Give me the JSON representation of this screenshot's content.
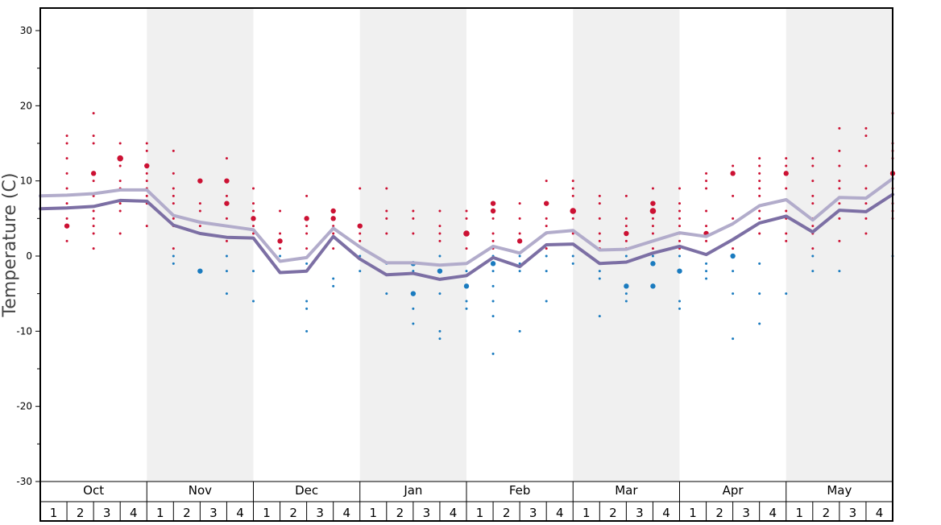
{
  "chart_data": {
    "type": "line",
    "title": "",
    "ylabel": "Temperature (C)",
    "xlabel": "",
    "ylim": [
      -30,
      33
    ],
    "yticks": [
      30,
      20,
      10,
      0,
      -10,
      -20,
      -30
    ],
    "grid": false,
    "months": [
      "Oct",
      "Nov",
      "Dec",
      "Jan",
      "Feb",
      "Mar",
      "Apr",
      "May"
    ],
    "weeks": [
      "1",
      "2",
      "3",
      "4"
    ],
    "colors": {
      "band": "#f0f0f0",
      "warm_dot": "#cc1133",
      "cold_dot": "#1a7bbf",
      "upper_line": "#b2accb",
      "lower_line": "#7c6fa4"
    },
    "series": [
      {
        "role": "upper",
        "values": [
          8.0,
          8.1,
          8.3,
          8.8,
          8.8,
          5.4,
          4.5,
          4.0,
          3.5,
          -0.7,
          -0.2,
          3.7,
          1.2,
          -0.9,
          -0.9,
          -1.2,
          -1.0,
          1.3,
          0.4,
          3.1,
          3.4,
          0.8,
          0.9,
          2.0,
          3.1,
          2.6,
          4.3,
          6.7,
          7.5,
          4.8,
          7.8,
          7.7,
          10.3
        ]
      },
      {
        "role": "lower",
        "values": [
          6.3,
          6.4,
          6.6,
          7.4,
          7.3,
          4.1,
          3.0,
          2.5,
          2.4,
          -2.2,
          -2.0,
          2.6,
          -0.4,
          -2.5,
          -2.3,
          -3.1,
          -2.6,
          -0.2,
          -1.4,
          1.5,
          1.6,
          -1.0,
          -0.8,
          0.4,
          1.3,
          0.2,
          2.2,
          4.4,
          5.3,
          3.2,
          6.1,
          5.9,
          8.2
        ]
      }
    ],
    "warm_points": [
      [
        1,
        16
      ],
      [
        1,
        15
      ],
      [
        1,
        13
      ],
      [
        1,
        11
      ],
      [
        1,
        9
      ],
      [
        1,
        7
      ],
      [
        1,
        5
      ],
      [
        1,
        4,
        "l"
      ],
      [
        1,
        2
      ],
      [
        2,
        19
      ],
      [
        2,
        16
      ],
      [
        2,
        15
      ],
      [
        2,
        11,
        "l"
      ],
      [
        2,
        10
      ],
      [
        2,
        8
      ],
      [
        2,
        6
      ],
      [
        2,
        5
      ],
      [
        2,
        4
      ],
      [
        2,
        3
      ],
      [
        2,
        1
      ],
      [
        3,
        15
      ],
      [
        3,
        13,
        "xl"
      ],
      [
        3,
        12
      ],
      [
        3,
        10
      ],
      [
        3,
        9
      ],
      [
        3,
        7
      ],
      [
        3,
        6
      ],
      [
        3,
        3
      ],
      [
        4,
        15
      ],
      [
        4,
        14
      ],
      [
        4,
        12,
        "l"
      ],
      [
        4,
        11
      ],
      [
        4,
        10
      ],
      [
        4,
        9
      ],
      [
        4,
        8
      ],
      [
        4,
        7
      ],
      [
        4,
        4
      ],
      [
        5,
        14
      ],
      [
        5,
        11
      ],
      [
        5,
        9
      ],
      [
        5,
        8
      ],
      [
        5,
        7
      ],
      [
        5,
        5
      ],
      [
        5,
        4
      ],
      [
        5,
        1
      ],
      [
        6,
        10,
        "l"
      ],
      [
        6,
        7
      ],
      [
        6,
        6
      ],
      [
        6,
        4
      ],
      [
        6,
        3
      ],
      [
        7,
        13
      ],
      [
        7,
        10,
        "l"
      ],
      [
        7,
        8
      ],
      [
        7,
        7,
        "l"
      ],
      [
        7,
        5
      ],
      [
        7,
        4
      ],
      [
        7,
        2
      ],
      [
        8,
        9
      ],
      [
        8,
        7
      ],
      [
        8,
        6
      ],
      [
        8,
        5,
        "l"
      ],
      [
        8,
        4
      ],
      [
        8,
        3
      ],
      [
        9,
        6
      ],
      [
        9,
        3
      ],
      [
        9,
        2,
        "l"
      ],
      [
        9,
        1
      ],
      [
        10,
        8
      ],
      [
        10,
        5,
        "l"
      ],
      [
        10,
        4
      ],
      [
        10,
        3
      ],
      [
        10,
        1
      ],
      [
        11,
        6,
        "l"
      ],
      [
        11,
        5,
        "l"
      ],
      [
        11,
        4
      ],
      [
        11,
        3
      ],
      [
        11,
        1
      ],
      [
        12,
        9
      ],
      [
        12,
        4,
        "l"
      ],
      [
        12,
        3
      ],
      [
        12,
        2
      ],
      [
        13,
        9
      ],
      [
        13,
        6
      ],
      [
        13,
        5
      ],
      [
        13,
        3
      ],
      [
        14,
        6
      ],
      [
        14,
        5
      ],
      [
        14,
        3
      ],
      [
        15,
        6
      ],
      [
        15,
        4
      ],
      [
        15,
        3
      ],
      [
        15,
        2
      ],
      [
        16,
        6
      ],
      [
        16,
        5
      ],
      [
        16,
        3,
        "xl"
      ],
      [
        16,
        1
      ],
      [
        17,
        7,
        "l"
      ],
      [
        17,
        6,
        "l"
      ],
      [
        17,
        5
      ],
      [
        17,
        3
      ],
      [
        17,
        2
      ],
      [
        17,
        1
      ],
      [
        18,
        7
      ],
      [
        18,
        5
      ],
      [
        18,
        3
      ],
      [
        18,
        2,
        "l"
      ],
      [
        19,
        10
      ],
      [
        19,
        7,
        "l"
      ],
      [
        19,
        5
      ],
      [
        19,
        4
      ],
      [
        19,
        3
      ],
      [
        19,
        1
      ],
      [
        20,
        10
      ],
      [
        20,
        9
      ],
      [
        20,
        8
      ],
      [
        20,
        6,
        "xl"
      ],
      [
        20,
        5
      ],
      [
        20,
        3
      ],
      [
        21,
        8
      ],
      [
        21,
        7
      ],
      [
        21,
        5
      ],
      [
        21,
        3
      ],
      [
        21,
        2
      ],
      [
        21,
        1
      ],
      [
        22,
        8
      ],
      [
        22,
        5
      ],
      [
        22,
        4
      ],
      [
        22,
        3,
        "l"
      ],
      [
        22,
        2
      ],
      [
        22,
        1
      ],
      [
        23,
        9
      ],
      [
        23,
        7,
        "l"
      ],
      [
        23,
        6,
        "xl"
      ],
      [
        23,
        5
      ],
      [
        23,
        4
      ],
      [
        23,
        3
      ],
      [
        23,
        1
      ],
      [
        24,
        9
      ],
      [
        24,
        7
      ],
      [
        24,
        6
      ],
      [
        24,
        5
      ],
      [
        24,
        4
      ],
      [
        24,
        3
      ],
      [
        24,
        2
      ],
      [
        24,
        1
      ],
      [
        25,
        11
      ],
      [
        25,
        10
      ],
      [
        25,
        9
      ],
      [
        25,
        6
      ],
      [
        25,
        4
      ],
      [
        25,
        3,
        "l"
      ],
      [
        25,
        2
      ],
      [
        26,
        12
      ],
      [
        26,
        11,
        "l"
      ],
      [
        26,
        8
      ],
      [
        26,
        5
      ],
      [
        26,
        1
      ],
      [
        27,
        13
      ],
      [
        27,
        12
      ],
      [
        27,
        11
      ],
      [
        27,
        10
      ],
      [
        27,
        9
      ],
      [
        27,
        8
      ],
      [
        27,
        6
      ],
      [
        27,
        5
      ],
      [
        27,
        3
      ],
      [
        28,
        13
      ],
      [
        28,
        12
      ],
      [
        28,
        11,
        "l"
      ],
      [
        28,
        9
      ],
      [
        28,
        6
      ],
      [
        28,
        5
      ],
      [
        28,
        3
      ],
      [
        28,
        2
      ],
      [
        29,
        13
      ],
      [
        29,
        12
      ],
      [
        29,
        10
      ],
      [
        29,
        8
      ],
      [
        29,
        7
      ],
      [
        29,
        5
      ],
      [
        29,
        4
      ],
      [
        29,
        3
      ],
      [
        29,
        1
      ],
      [
        30,
        17
      ],
      [
        30,
        14
      ],
      [
        30,
        12
      ],
      [
        30,
        10
      ],
      [
        30,
        9
      ],
      [
        30,
        7
      ],
      [
        30,
        5
      ],
      [
        30,
        2
      ],
      [
        31,
        17
      ],
      [
        31,
        16
      ],
      [
        31,
        12
      ],
      [
        31,
        9
      ],
      [
        31,
        7
      ],
      [
        31,
        5
      ],
      [
        31,
        3
      ],
      [
        32,
        19
      ],
      [
        32,
        15
      ],
      [
        32,
        14
      ],
      [
        32,
        13
      ],
      [
        32,
        11,
        "l"
      ],
      [
        32,
        9
      ],
      [
        32,
        7
      ],
      [
        32,
        6
      ],
      [
        32,
        5
      ]
    ],
    "cold_points": [
      [
        5,
        0
      ],
      [
        5,
        -1
      ],
      [
        6,
        -2,
        "l"
      ],
      [
        7,
        0
      ],
      [
        7,
        -2
      ],
      [
        7,
        -5
      ],
      [
        8,
        -2
      ],
      [
        8,
        -6
      ],
      [
        9,
        0
      ],
      [
        10,
        -1
      ],
      [
        10,
        -6
      ],
      [
        10,
        -7
      ],
      [
        10,
        -10
      ],
      [
        11,
        -3
      ],
      [
        11,
        -4
      ],
      [
        12,
        0
      ],
      [
        12,
        -2
      ],
      [
        13,
        -1
      ],
      [
        13,
        -5
      ],
      [
        14,
        -1,
        "l"
      ],
      [
        14,
        -2
      ],
      [
        14,
        -5,
        "l"
      ],
      [
        14,
        -7
      ],
      [
        14,
        -9
      ],
      [
        15,
        0
      ],
      [
        15,
        -2,
        "l"
      ],
      [
        15,
        -5
      ],
      [
        15,
        -10
      ],
      [
        15,
        -11
      ],
      [
        16,
        -1
      ],
      [
        16,
        -2
      ],
      [
        16,
        -4,
        "l"
      ],
      [
        16,
        -6
      ],
      [
        16,
        -7
      ],
      [
        17,
        0
      ],
      [
        17,
        -1,
        "l"
      ],
      [
        17,
        -2
      ],
      [
        17,
        -4
      ],
      [
        17,
        -6
      ],
      [
        17,
        -8
      ],
      [
        17,
        -13
      ],
      [
        18,
        0
      ],
      [
        18,
        -1
      ],
      [
        18,
        -2
      ],
      [
        18,
        -10
      ],
      [
        19,
        0
      ],
      [
        19,
        -2
      ],
      [
        19,
        -6
      ],
      [
        20,
        0
      ],
      [
        20,
        -1
      ],
      [
        21,
        -2
      ],
      [
        21,
        -3
      ],
      [
        21,
        -8
      ],
      [
        22,
        0
      ],
      [
        22,
        -4,
        "l"
      ],
      [
        22,
        -5
      ],
      [
        22,
        -6
      ],
      [
        23,
        0
      ],
      [
        23,
        -1,
        "l"
      ],
      [
        23,
        -4,
        "l"
      ],
      [
        24,
        0
      ],
      [
        24,
        -2,
        "l"
      ],
      [
        24,
        -6
      ],
      [
        24,
        -7
      ],
      [
        25,
        -1
      ],
      [
        25,
        -2
      ],
      [
        25,
        -3
      ],
      [
        26,
        0,
        "l"
      ],
      [
        26,
        -2
      ],
      [
        26,
        -5
      ],
      [
        26,
        -11
      ],
      [
        27,
        -1
      ],
      [
        27,
        -5
      ],
      [
        27,
        -9
      ],
      [
        28,
        -5
      ],
      [
        29,
        0
      ],
      [
        29,
        -2
      ],
      [
        30,
        -2
      ],
      [
        32,
        0
      ]
    ]
  }
}
